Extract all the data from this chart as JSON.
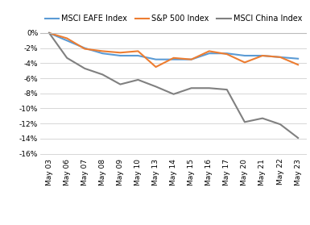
{
  "dates": [
    "May 03",
    "May 06",
    "May 07",
    "May 08",
    "May 09",
    "May 10",
    "May 13",
    "May 14",
    "May 15",
    "May 16",
    "May 17",
    "May 20",
    "May 21",
    "May 22",
    "May 23"
  ],
  "msci_eafe": [
    0.0,
    -1.0,
    -2.0,
    -2.7,
    -3.0,
    -3.0,
    -3.5,
    -3.5,
    -3.5,
    -2.7,
    -2.7,
    -3.0,
    -3.0,
    -3.2,
    -3.4
  ],
  "sp500": [
    0.0,
    -0.7,
    -2.1,
    -2.4,
    -2.6,
    -2.4,
    -4.5,
    -3.3,
    -3.5,
    -2.4,
    -2.8,
    -3.9,
    -3.0,
    -3.2,
    -4.2
  ],
  "msci_china": [
    0.0,
    -3.3,
    -4.7,
    -5.5,
    -6.8,
    -6.2,
    -7.1,
    -8.1,
    -7.3,
    -7.3,
    -7.5,
    -11.8,
    -11.3,
    -12.1,
    -13.9
  ],
  "colors": {
    "msci_eafe": "#5b9bd5",
    "sp500": "#ed7d31",
    "msci_china": "#808080"
  },
  "legend_labels": [
    "MSCI EAFE Index",
    "S&P 500 Index",
    "MSCI China Index"
  ],
  "ylim": [
    -16.5,
    0.5
  ],
  "yticks": [
    0,
    -2,
    -4,
    -6,
    -8,
    -10,
    -12,
    -14,
    -16
  ],
  "background_color": "#ffffff",
  "grid_color": "#d0d0d0",
  "line_width": 1.5,
  "font_size_legend": 7.0,
  "font_size_ticks": 6.5
}
